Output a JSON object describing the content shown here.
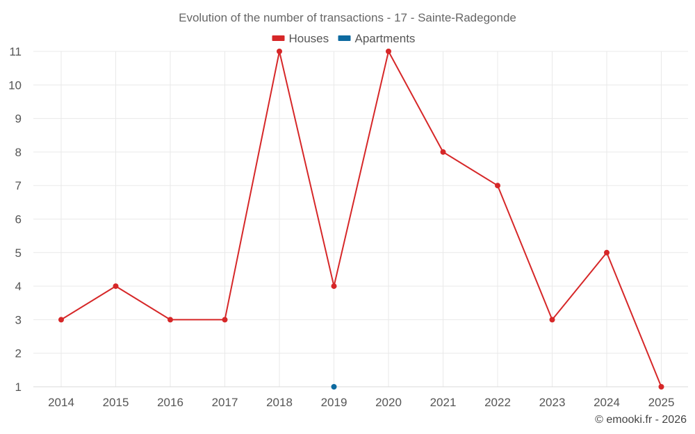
{
  "chart_data": {
    "type": "line",
    "title": "Evolution of the number of transactions - 17 - Sainte-Radegonde",
    "categories": [
      "2014",
      "2015",
      "2016",
      "2017",
      "2018",
      "2019",
      "2020",
      "2021",
      "2022",
      "2023",
      "2024",
      "2025"
    ],
    "ylim": [
      1,
      11
    ],
    "yticks": [
      1,
      2,
      3,
      4,
      5,
      6,
      7,
      8,
      9,
      10,
      11
    ],
    "grid": true,
    "legend": "top-center",
    "series": [
      {
        "name": "Houses",
        "color": "#d62728",
        "values": [
          3,
          4,
          3,
          3,
          11,
          4,
          11,
          8,
          7,
          3,
          5,
          1
        ]
      },
      {
        "name": "Apartments",
        "color": "#0d6aa0",
        "values": [
          null,
          null,
          null,
          null,
          null,
          1,
          null,
          null,
          null,
          null,
          null,
          null
        ]
      }
    ],
    "footer": "© emooki.fr - 2026"
  }
}
